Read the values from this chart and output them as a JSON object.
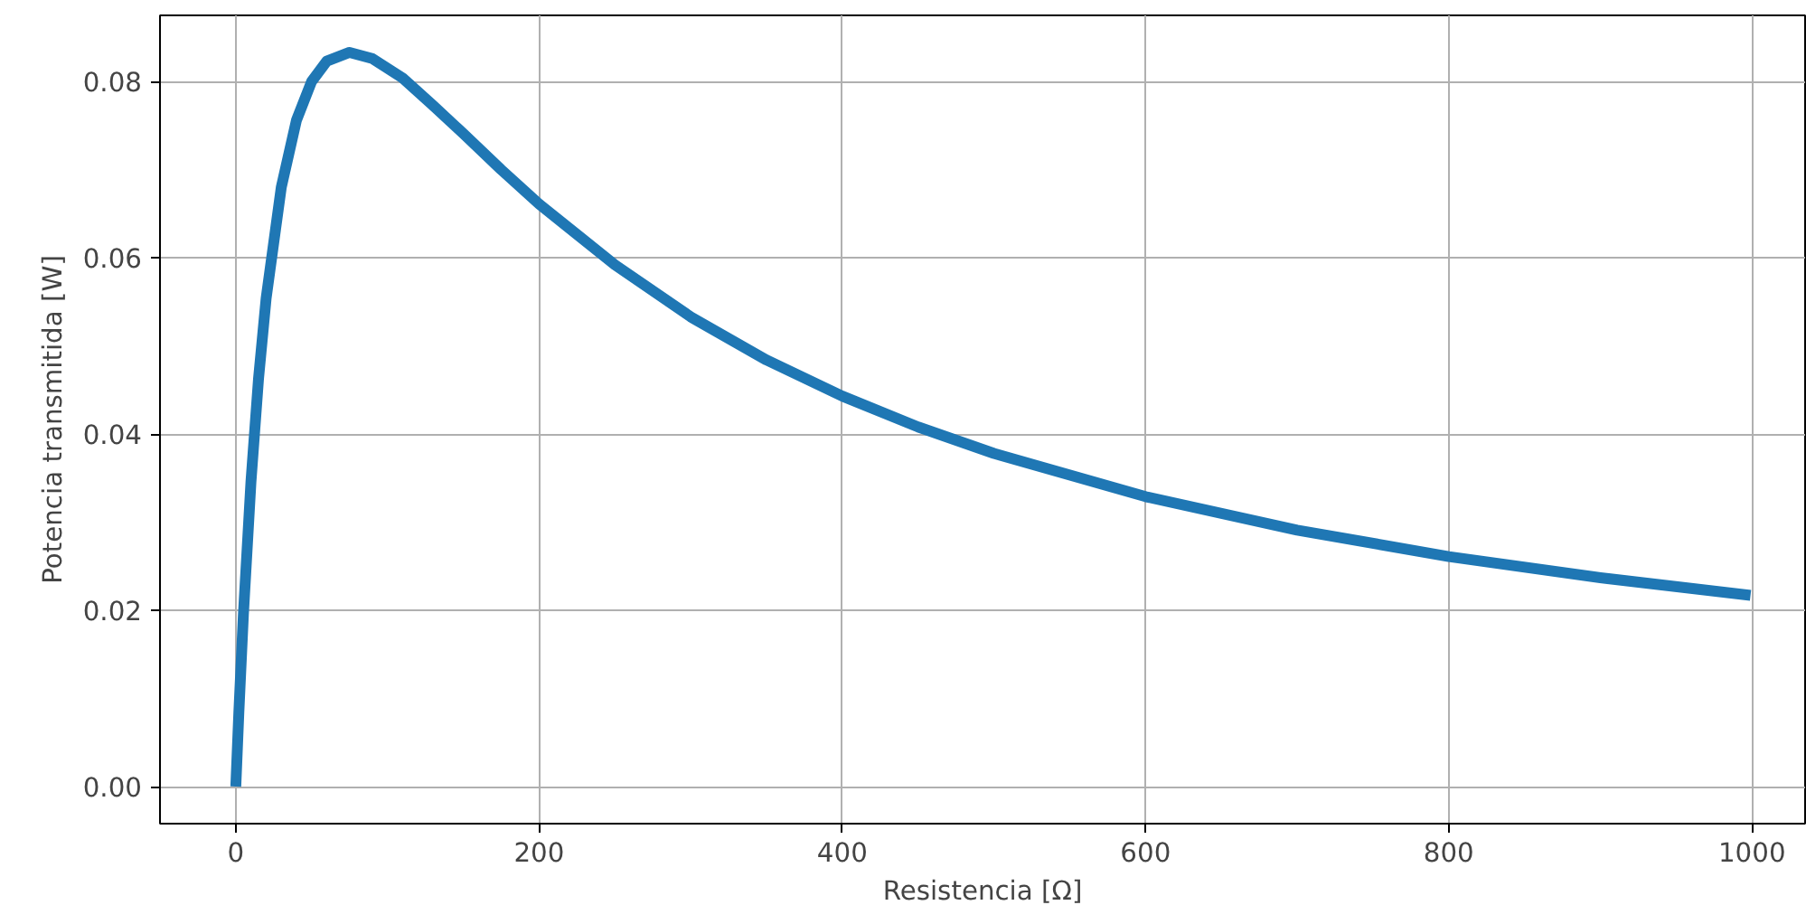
{
  "chart_data": {
    "type": "line",
    "xlabel": "Resistencia [Ω]",
    "ylabel": "Potencia transmitida [W]",
    "x": [
      0,
      2,
      5,
      10,
      15,
      20,
      30,
      40,
      50,
      60,
      75,
      90,
      110,
      130,
      150,
      175,
      200,
      250,
      300,
      350,
      400,
      450,
      500,
      600,
      700,
      800,
      900,
      999
    ],
    "series": [
      {
        "color": "#1f77b4",
        "values": [
          0,
          0.0084,
          0.0195,
          0.0346,
          0.0463,
          0.0554,
          0.068,
          0.0756,
          0.08,
          0.0823,
          0.0833,
          0.0826,
          0.0804,
          0.0773,
          0.0741,
          0.07,
          0.0661,
          0.0592,
          0.0533,
          0.0484,
          0.0443,
          0.0408,
          0.0378,
          0.0329,
          0.0291,
          0.0261,
          0.0237,
          0.0217
        ]
      }
    ],
    "xlim": [
      -50,
      1035
    ],
    "ylim": [
      -0.0042,
      0.0875
    ],
    "xticks": [
      0,
      200,
      400,
      600,
      800,
      1000
    ],
    "yticks": [
      {
        "value": 0,
        "label": "0.00"
      },
      {
        "value": 0.02,
        "label": "0.02"
      },
      {
        "value": 0.04,
        "label": "0.04"
      },
      {
        "value": 0.06,
        "label": "0.06"
      },
      {
        "value": 0.08,
        "label": "0.08"
      }
    ],
    "grid": true,
    "marker": "none",
    "line_style": "solid"
  }
}
